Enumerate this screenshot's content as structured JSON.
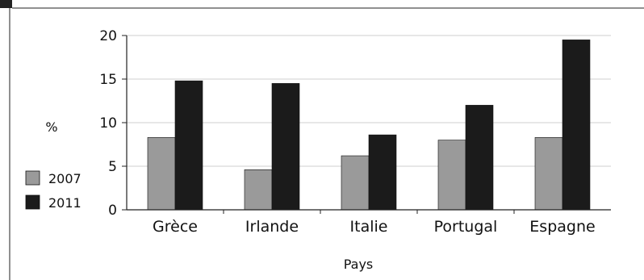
{
  "chart_data": {
    "type": "bar",
    "categories": [
      "Grèce",
      "Irlande",
      "Italie",
      "Portugal",
      "Espagne"
    ],
    "series": [
      {
        "name": "2007",
        "values": [
          8.3,
          4.6,
          6.2,
          8.0,
          8.3
        ],
        "color": "#9a9a9a"
      },
      {
        "name": "2011",
        "values": [
          14.8,
          14.5,
          8.6,
          12.0,
          19.5
        ],
        "color": "#1b1b1b"
      }
    ],
    "title": "",
    "xlabel": "Pays",
    "ylabel": "%",
    "ylim": [
      0,
      20
    ],
    "yticks": [
      "0",
      "5",
      "10",
      "15",
      "20"
    ],
    "grid": true,
    "legend": "left"
  },
  "colors": {
    "gridline": "#cfcfcf",
    "axis": "#222222",
    "corner_block": "#222222"
  }
}
